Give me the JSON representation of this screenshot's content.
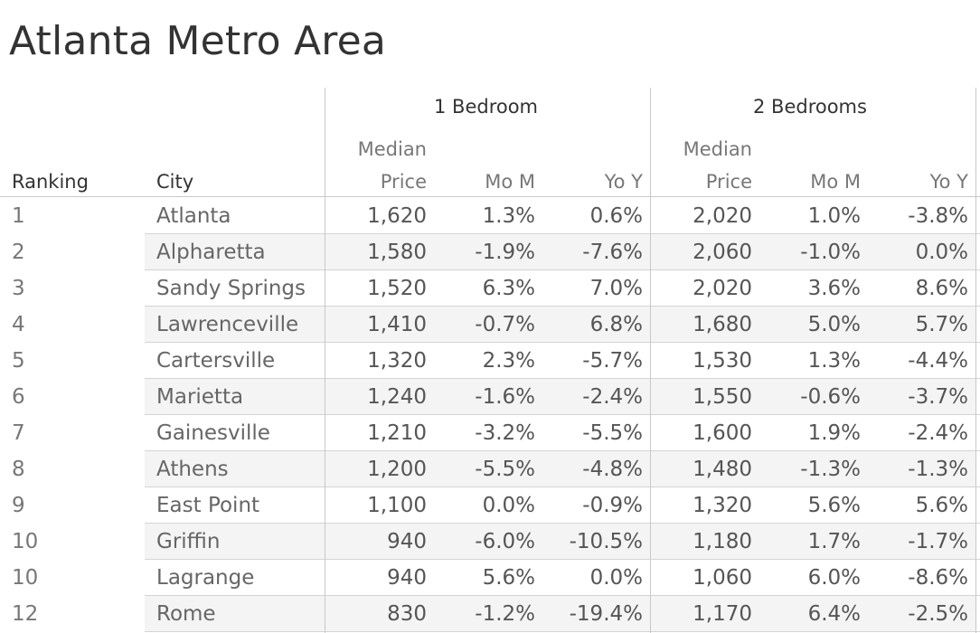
{
  "title": "Atlanta Metro Area",
  "headers": {
    "group1": "1 Bedroom",
    "group2": "2 Bedrooms",
    "ranking": "Ranking",
    "city": "City",
    "median_top": "Median",
    "median_bottom": "Price",
    "mom": "Mo M",
    "yoy": "Yo Y"
  },
  "chart_data": {
    "type": "table",
    "title": "Atlanta Metro Area",
    "columns": [
      "Ranking",
      "City",
      "1 Bedroom Median Price",
      "1 Bedroom Mo M",
      "1 Bedroom Yo Y",
      "2 Bedrooms Median Price",
      "2 Bedrooms Mo M",
      "2 Bedrooms Yo Y"
    ],
    "rows": [
      [
        "1",
        "Atlanta",
        "1,620",
        "1.3%",
        "0.6%",
        "2,020",
        "1.0%",
        "-3.8%"
      ],
      [
        "2",
        "Alpharetta",
        "1,580",
        "-1.9%",
        "-7.6%",
        "2,060",
        "-1.0%",
        "0.0%"
      ],
      [
        "3",
        "Sandy Springs",
        "1,520",
        "6.3%",
        "7.0%",
        "2,020",
        "3.6%",
        "8.6%"
      ],
      [
        "4",
        "Lawrenceville",
        "1,410",
        "-0.7%",
        "6.8%",
        "1,680",
        "5.0%",
        "5.7%"
      ],
      [
        "5",
        "Cartersville",
        "1,320",
        "2.3%",
        "-5.7%",
        "1,530",
        "1.3%",
        "-4.4%"
      ],
      [
        "6",
        "Marietta",
        "1,240",
        "-1.6%",
        "-2.4%",
        "1,550",
        "-0.6%",
        "-3.7%"
      ],
      [
        "7",
        "Gainesville",
        "1,210",
        "-3.2%",
        "-5.5%",
        "1,600",
        "1.9%",
        "-2.4%"
      ],
      [
        "8",
        "Athens",
        "1,200",
        "-5.5%",
        "-4.8%",
        "1,480",
        "-1.3%",
        "-1.3%"
      ],
      [
        "9",
        "East Point",
        "1,100",
        "0.0%",
        "-0.9%",
        "1,320",
        "5.6%",
        "5.6%"
      ],
      [
        "10",
        "Griffin",
        "940",
        "-6.0%",
        "-10.5%",
        "1,180",
        "1.7%",
        "-1.7%"
      ],
      [
        "10",
        "Lagrange",
        "940",
        "5.6%",
        "0.0%",
        "1,060",
        "6.0%",
        "-8.6%"
      ],
      [
        "12",
        "Rome",
        "830",
        "-1.2%",
        "-19.4%",
        "1,170",
        "6.4%",
        "-2.5%"
      ]
    ]
  }
}
